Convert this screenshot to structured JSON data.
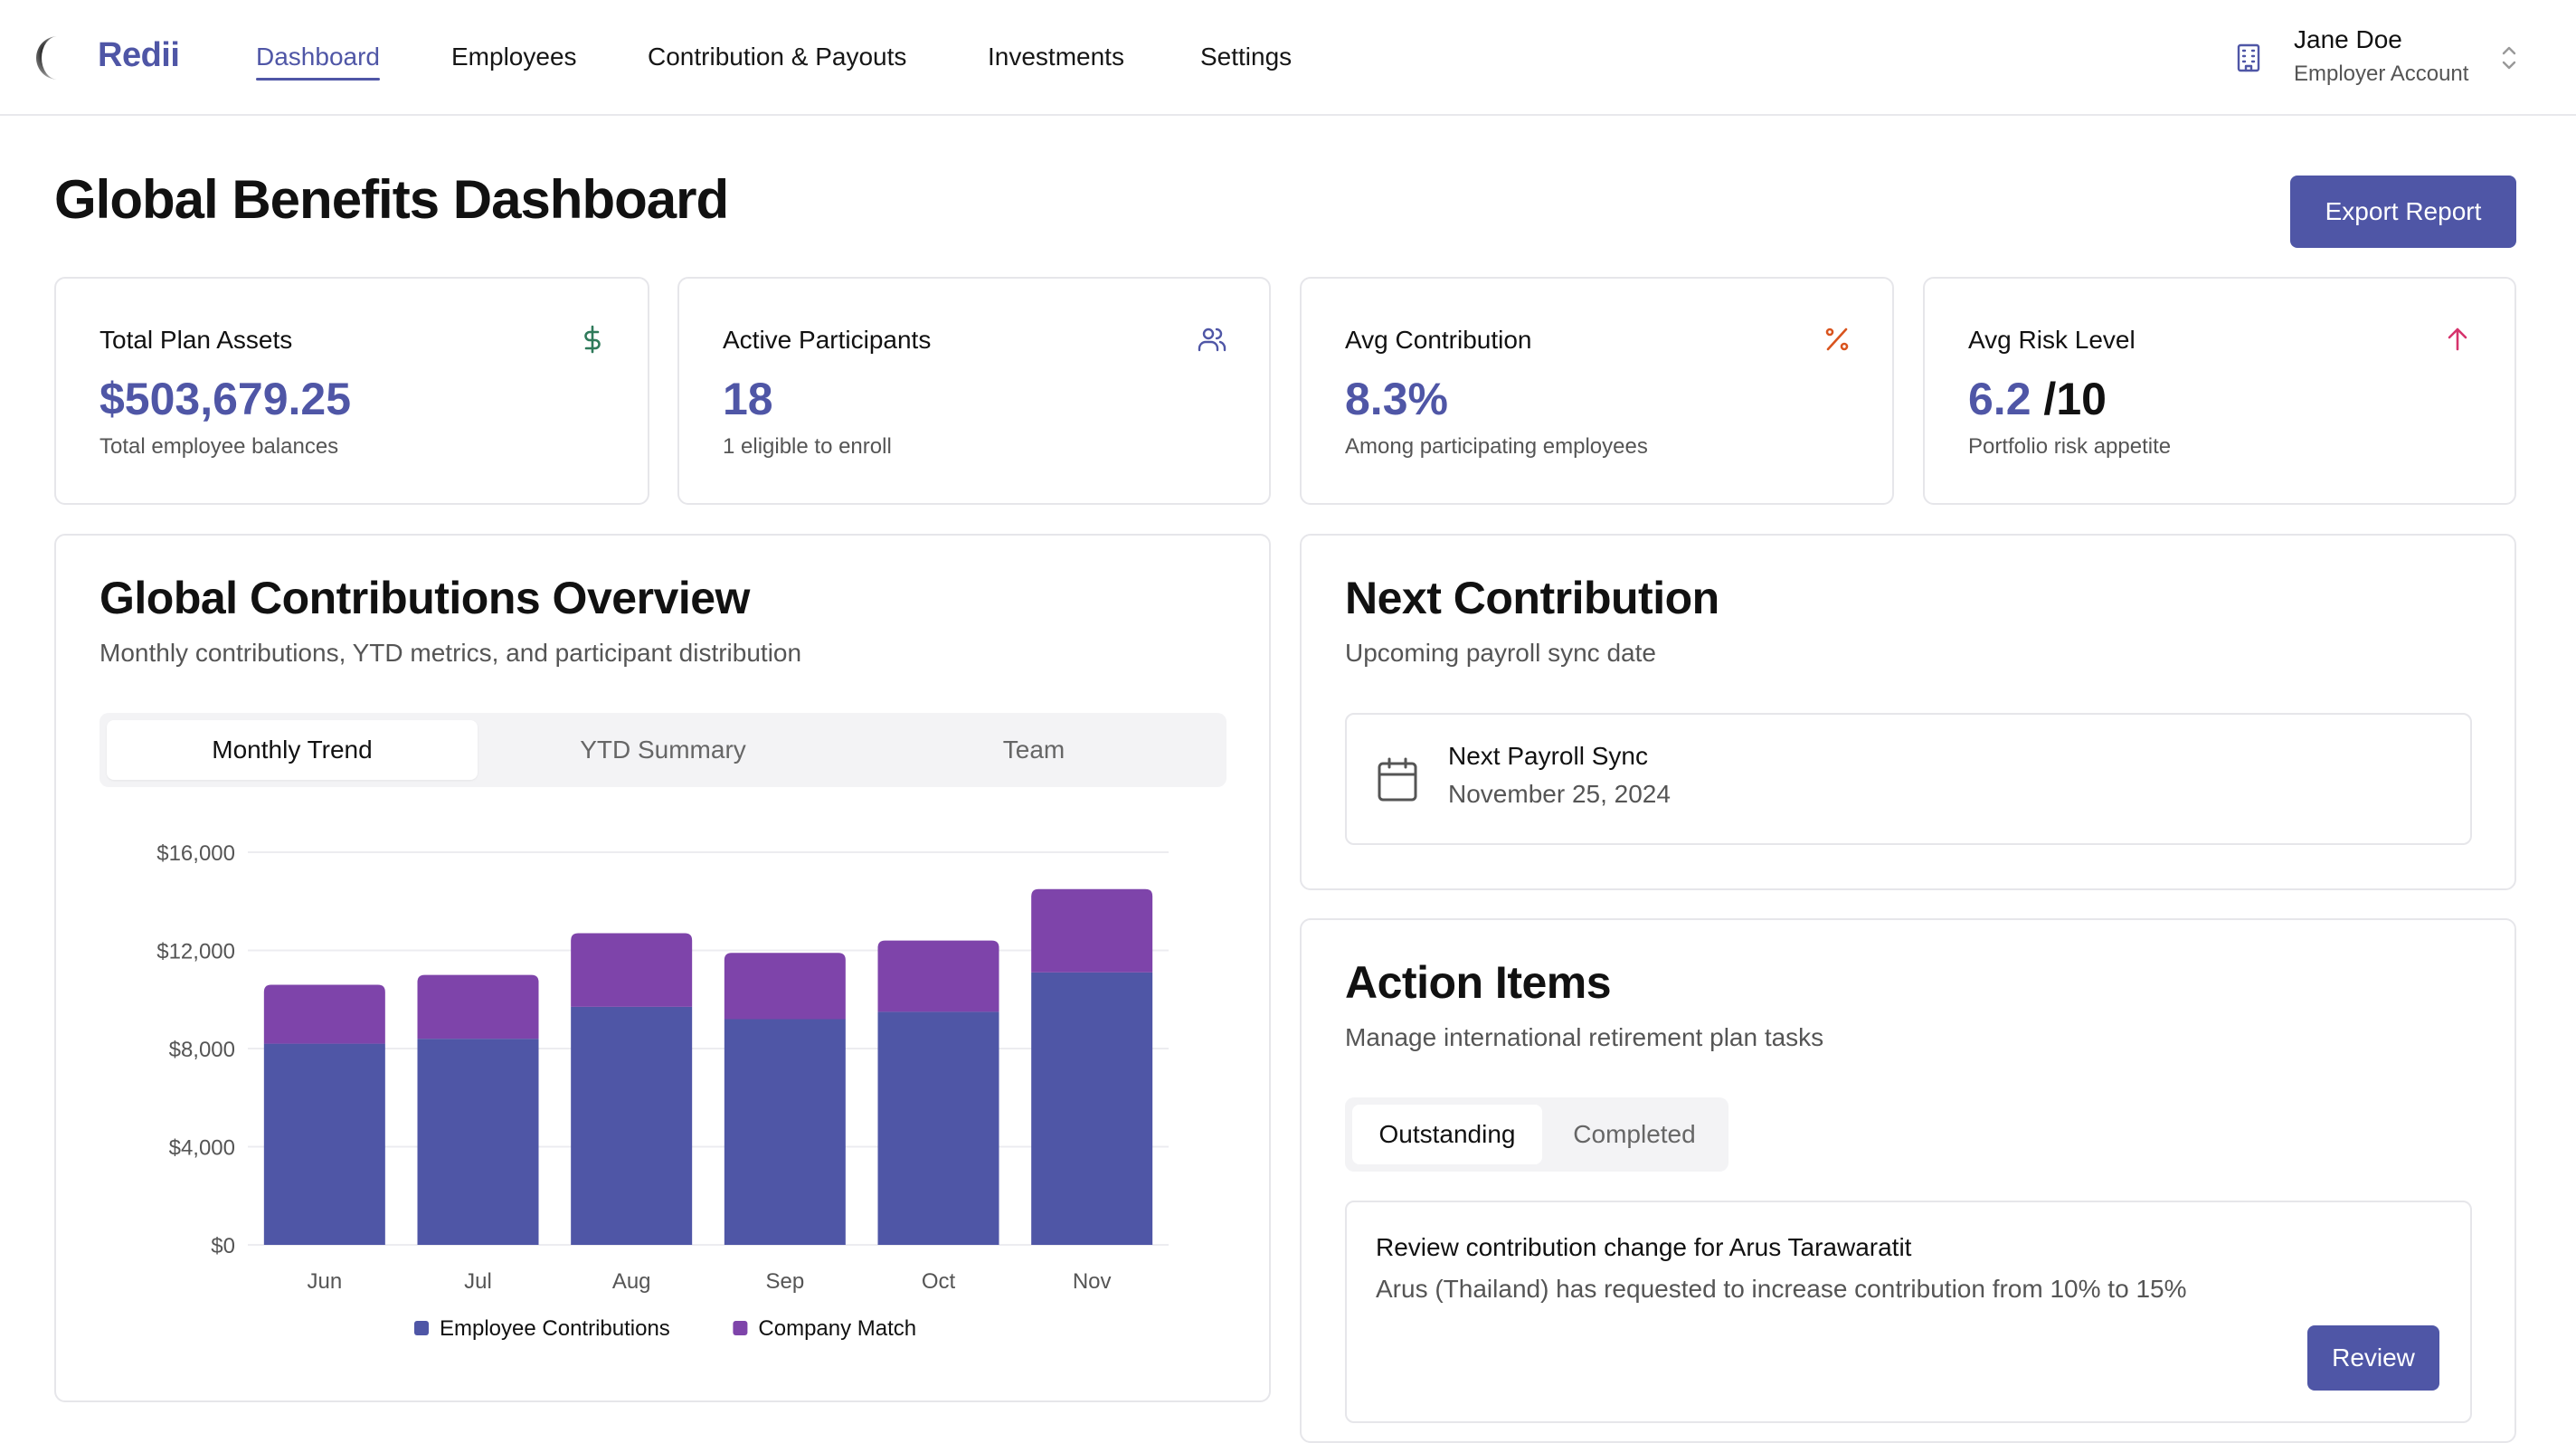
{
  "app": {
    "brand": "Redii"
  },
  "nav": {
    "items": [
      {
        "label": "Dashboard"
      },
      {
        "label": "Employees"
      },
      {
        "label": "Contribution & Payouts"
      },
      {
        "label": "Investments"
      },
      {
        "label": "Settings"
      }
    ]
  },
  "user": {
    "name": "Jane Doe",
    "role": "Employer Account"
  },
  "page": {
    "title": "Global Benefits Dashboard",
    "export_label": "Export Report"
  },
  "stats": [
    {
      "title": "Total Plan Assets",
      "value": "$503,679.25",
      "suffix": "",
      "sub": "Total employee balances",
      "icon": "dollar-icon",
      "color": "#2f7a5a"
    },
    {
      "title": "Active Participants",
      "value": "18",
      "suffix": "",
      "sub": "1 eligible to enroll",
      "icon": "users-icon",
      "color": "#4f56a6"
    },
    {
      "title": "Avg Contribution",
      "value": "8.3%",
      "suffix": "",
      "sub": "Among participating employees",
      "icon": "percent-icon",
      "color": "#d9541e"
    },
    {
      "title": "Avg Risk Level",
      "value": "6.2",
      "suffix": "/10",
      "sub": "Portfolio risk appetite",
      "icon": "arrow-up-icon",
      "color": "#d6336c"
    }
  ],
  "overview": {
    "title": "Global Contributions Overview",
    "subtitle": "Monthly contributions, YTD metrics, and participant distribution",
    "tabs": [
      {
        "label": "Monthly Trend"
      },
      {
        "label": "YTD Summary"
      },
      {
        "label": "Team"
      }
    ]
  },
  "chart_data": {
    "type": "bar",
    "stacked": true,
    "categories": [
      "Jun",
      "Jul",
      "Aug",
      "Sep",
      "Oct",
      "Nov"
    ],
    "series": [
      {
        "name": "Employee Contributions",
        "color": "#4f56a6",
        "values": [
          8200,
          8400,
          9700,
          9200,
          9500,
          11100
        ]
      },
      {
        "name": "Company Match",
        "color": "#7e44aa",
        "values": [
          2400,
          2600,
          3000,
          2700,
          2900,
          3400
        ]
      }
    ],
    "yticks": [
      "$0",
      "$4,000",
      "$8,000",
      "$12,000",
      "$16,000"
    ],
    "ylim": [
      0,
      16000
    ],
    "legend": "bottom",
    "grid": true
  },
  "next_contribution": {
    "title": "Next Contribution",
    "subtitle": "Upcoming payroll sync date",
    "sync_title": "Next Payroll Sync",
    "sync_date": "November 25, 2024"
  },
  "actions": {
    "title": "Action Items",
    "subtitle": "Manage international retirement plan tasks",
    "tabs": [
      {
        "label": "Outstanding"
      },
      {
        "label": "Completed"
      }
    ],
    "task": {
      "title": "Review contribution change for Arus Tarawaratit",
      "description": "Arus (Thailand) has requested to increase contribution from 10% to 15%",
      "button": "Review"
    }
  }
}
